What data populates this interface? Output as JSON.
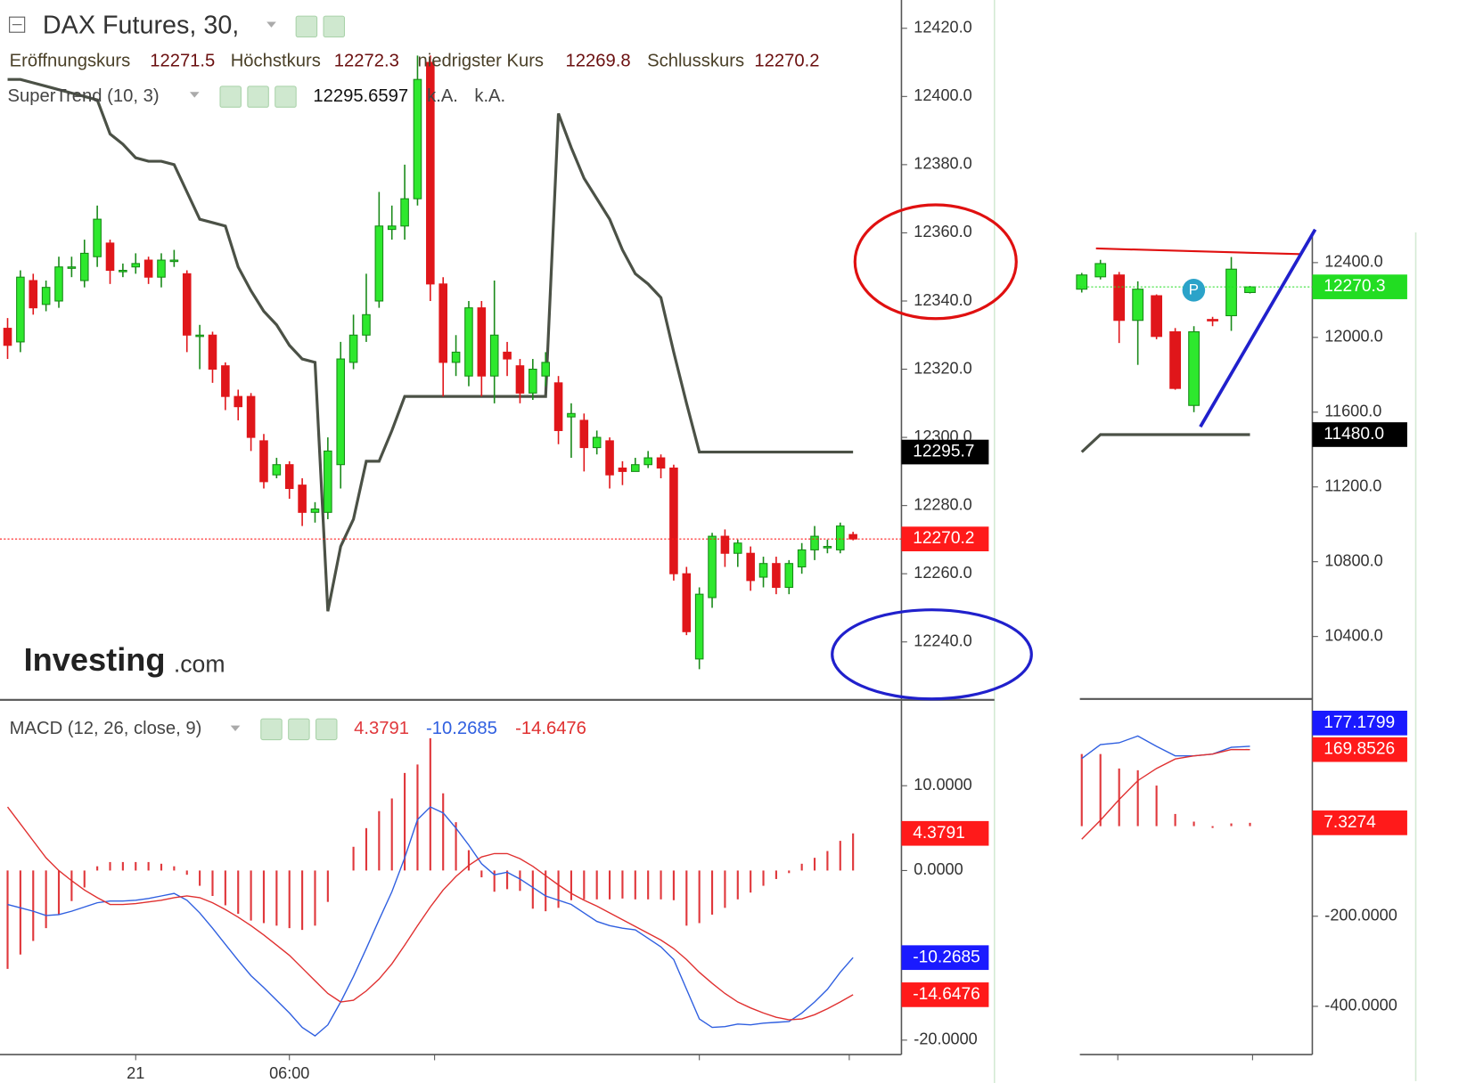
{
  "chart_data": [
    {
      "type": "candlestick",
      "title": "DAX Futures, 30,",
      "ohlc_labels": [
        "Eröffnungskurs",
        "Höchstkurs",
        "niedrigster Kurs",
        "Schlusskurs"
      ],
      "ohlc_values": [
        12271.5,
        12272.3,
        12269.8,
        12270.2
      ],
      "categories": [
        null,
        null,
        null,
        null,
        null,
        null,
        null,
        null,
        null,
        null,
        "21",
        null,
        null,
        null,
        null,
        null,
        null,
        null,
        null,
        null,
        null,
        null,
        "06:00",
        null,
        null,
        null,
        null,
        null,
        null,
        null,
        null,
        null,
        null,
        null,
        null,
        null,
        null,
        null,
        null,
        null,
        null,
        null,
        null,
        null,
        null,
        null,
        null,
        null,
        null,
        null,
        null,
        null,
        null,
        null,
        null,
        null,
        null,
        null,
        null,
        null,
        null,
        null,
        null,
        null,
        null,
        null,
        null
      ],
      "open": [
        12332,
        12328,
        12346,
        12339,
        12340,
        12350,
        12346,
        12353,
        12357,
        12349,
        12350,
        12352,
        12347,
        12352,
        12348,
        12330,
        12330,
        12321,
        12312,
        12312,
        12299,
        12289,
        12292,
        12286,
        12278,
        12278,
        12292,
        12322,
        12330,
        12340,
        12361,
        12362,
        12370,
        12410,
        12345,
        12322,
        12318,
        12338,
        12318,
        12325,
        12321,
        12313,
        12318,
        12316,
        12306,
        12305,
        12297,
        12299,
        12291,
        12290,
        12292,
        12294,
        12291,
        12260,
        12235,
        12253,
        12271,
        12266,
        12266,
        12259,
        12263,
        12256,
        12262,
        12267,
        12268,
        12267,
        12271.5
      ],
      "high": [
        12335,
        12349,
        12348,
        12346,
        12353,
        12353,
        12358,
        12368,
        12358,
        12351,
        12354,
        12353,
        12354,
        12355,
        12349,
        12333,
        12331,
        12322,
        12314,
        12313,
        12301,
        12294,
        12293,
        12288,
        12281,
        12300,
        12328,
        12336,
        12348,
        12372,
        12368,
        12380,
        12412,
        12412,
        12347,
        12330,
        12340,
        12340,
        12346,
        12328,
        12323,
        12323,
        12325,
        12318,
        12310,
        12307,
        12302,
        12300,
        12293,
        12294,
        12296,
        12295,
        12292,
        12262,
        12256,
        12272,
        12273,
        12270,
        12268,
        12265,
        12265,
        12264,
        12269,
        12274,
        12270,
        12275,
        12272.3
      ],
      "low": [
        12323,
        12325,
        12336,
        12337,
        12338,
        12347,
        12344,
        12350,
        12345,
        12347,
        12348,
        12345,
        12344,
        12350,
        12325,
        12320,
        12316,
        12308,
        12305,
        12296,
        12285,
        12288,
        12282,
        12274,
        12275,
        12276,
        12285,
        12320,
        12328,
        12338,
        12358,
        12358,
        12368,
        12340,
        12312,
        12318,
        12315,
        12312,
        12310,
        12318,
        12310,
        12311,
        12315,
        12298,
        12294,
        12290,
        12295,
        12285,
        12286,
        12290,
        12291,
        12288,
        12258,
        12242,
        12232,
        12250,
        12262,
        12262,
        12255,
        12256,
        12254,
        12254,
        12260,
        12264,
        12266,
        12266,
        12269.8
      ],
      "close": [
        12327,
        12347,
        12338,
        12344,
        12350,
        12350,
        12354,
        12364,
        12349,
        12349,
        12351,
        12347,
        12352,
        12352,
        12330,
        12330,
        12320,
        12312,
        12309,
        12300,
        12287,
        12292,
        12285,
        12278,
        12279,
        12296,
        12323,
        12330,
        12336,
        12362,
        12362,
        12370,
        12405,
        12345,
        12322,
        12325,
        12338,
        12318,
        12330,
        12323,
        12313,
        12320,
        12322,
        12302,
        12307,
        12297,
        12300,
        12289,
        12290,
        12292,
        12294,
        12291,
        12260,
        12243,
        12254,
        12271,
        12266,
        12269,
        12258,
        12263,
        12256,
        12263,
        12267,
        12271,
        12268,
        12274,
        12270.2
      ],
      "up_color": "#2ee82e",
      "down_color": "#e0161a",
      "series": [
        {
          "name": "SuperTrend (10, 3)",
          "color": "#4b5146",
          "value": 12295.6597,
          "status_labels": [
            "k.A.",
            "k.A."
          ],
          "values": [
            12405,
            12405,
            12404,
            12403,
            12402,
            12401,
            12400,
            12399,
            12389,
            12386,
            12382,
            12381,
            12381,
            12380,
            12372,
            12364,
            12363,
            12362,
            12350,
            12343,
            12337,
            12333,
            12327,
            12323,
            12322,
            12249,
            12268,
            12276,
            12293,
            12293,
            12302,
            12312,
            12312,
            12312,
            12312,
            12312,
            12312,
            12312,
            12312,
            12312,
            12312,
            12312,
            12312,
            12395,
            12385,
            12376,
            12370,
            12364,
            12355,
            12348,
            12345,
            12341,
            12325,
            12310,
            12295.7,
            12295.7,
            12295.7,
            12295.7,
            12295.7,
            12295.7,
            12295.7,
            12295.7,
            12295.7,
            12295.7,
            12295.7,
            12295.7,
            12295.7
          ]
        }
      ],
      "ylim": [
        12223,
        12428.3
      ],
      "yticks": [
        {
          "value": 12420,
          "label": "12420.0"
        },
        {
          "value": 12400,
          "label": "12400.0"
        },
        {
          "value": 12380,
          "label": "12380.0"
        },
        {
          "value": 12360,
          "label": "12360.0"
        },
        {
          "value": 12340,
          "label": "12340.0"
        },
        {
          "value": 12320,
          "label": "12320.0"
        },
        {
          "value": 12300,
          "label": "12300.0"
        },
        {
          "value": 12280,
          "label": "12280.0"
        },
        {
          "value": 12260,
          "label": "12260.0"
        },
        {
          "value": 12240,
          "label": "12240.0"
        }
      ],
      "price_labels": [
        {
          "value": 12295.7,
          "color": "#000000"
        },
        {
          "value": 12270.2,
          "color": "#ff1a1a",
          "line": true
        }
      ],
      "watermark": [
        "Investing",
        ".com"
      ]
    },
    {
      "type": "macd",
      "title": "MACD (12, 26, close, 9)",
      "legend_values": [
        4.3791,
        -10.2685,
        -14.6476
      ],
      "histogram": {
        "color": "#e0383c",
        "values": [
          -11.6,
          -9.9,
          -8.3,
          -6.8,
          -5.2,
          -3.6,
          -2.0,
          0.5,
          1.0,
          1.0,
          1.0,
          1.0,
          0.8,
          0.5,
          -0.5,
          -1.8,
          -3.0,
          -4.1,
          -5.1,
          -5.9,
          -6.2,
          -6.5,
          -6.8,
          -7.0,
          -6.5,
          -3.7,
          0.0,
          2.8,
          5.0,
          7.0,
          8.5,
          11.5,
          12.5,
          15.6,
          9.1,
          5.7,
          2.4,
          -0.8,
          -2.5,
          -2.2,
          -2.4,
          -4.5,
          -4.8,
          -4.4,
          -3.5,
          -3.4,
          -3.4,
          -3.4,
          -3.3,
          -3.4,
          -3.4,
          -3.4,
          -3.5,
          -6.5,
          -6.2,
          -5.2,
          -4.4,
          -3.4,
          -2.6,
          -1.8,
          -1.0,
          -0.3,
          0.8,
          1.5,
          2.3,
          3.5,
          4.3791
        ]
      },
      "series": [
        {
          "color": "#2f5fe0",
          "values": [
            -4.0,
            -4.4,
            -4.8,
            -5.3,
            -5.2,
            -4.8,
            -4.3,
            -3.8,
            -3.6,
            -3.6,
            -3.5,
            -3.3,
            -3.0,
            -2.7,
            -3.5,
            -5.0,
            -6.8,
            -8.7,
            -10.6,
            -12.4,
            -13.8,
            -15.3,
            -16.8,
            -18.5,
            -19.5,
            -18.2,
            -15.5,
            -12.5,
            -9.2,
            -5.8,
            -2.5,
            1.5,
            6.0,
            7.5,
            6.8,
            5.0,
            3.0,
            0.8,
            -0.5,
            -0.2,
            -1.0,
            -2.0,
            -3.0,
            -3.5,
            -4.0,
            -5.0,
            -6.0,
            -6.5,
            -6.8,
            -7.0,
            -8.0,
            -9.0,
            -10.5,
            -14.0,
            -17.5,
            -18.5,
            -18.4,
            -18.1,
            -18.2,
            -18.0,
            -17.9,
            -17.8,
            -16.8,
            -15.5,
            -14.0,
            -12.0,
            -10.2685
          ]
        },
        {
          "color": "#e03030",
          "values": [
            7.5,
            5.5,
            3.5,
            1.5,
            0.0,
            -1.2,
            -2.3,
            -3.2,
            -4.0,
            -4.0,
            -3.9,
            -3.7,
            -3.5,
            -3.2,
            -3.0,
            -3.2,
            -3.8,
            -4.6,
            -5.5,
            -6.5,
            -7.6,
            -8.8,
            -10.0,
            -11.5,
            -13.0,
            -14.5,
            -15.5,
            -15.3,
            -14.2,
            -12.8,
            -11.0,
            -8.8,
            -6.5,
            -4.3,
            -2.3,
            -0.7,
            0.6,
            1.6,
            2.0,
            2.0,
            1.4,
            0.5,
            -0.6,
            -1.7,
            -2.7,
            -3.5,
            -4.2,
            -5.0,
            -5.8,
            -6.6,
            -7.4,
            -8.2,
            -9.2,
            -10.5,
            -12.0,
            -13.3,
            -14.5,
            -15.5,
            -16.2,
            -16.8,
            -17.3,
            -17.6,
            -17.5,
            -17.0,
            -16.3,
            -15.5,
            -14.6476
          ]
        }
      ],
      "ylim": [
        -21.7,
        19.9
      ],
      "yticks": [
        {
          "value": 10,
          "label": "10.0000"
        },
        {
          "value": 0,
          "label": "0.0000"
        },
        {
          "value": -20,
          "label": "-20.0000"
        }
      ],
      "price_labels": [
        {
          "value": 4.3791,
          "color": "#ff1a1a"
        },
        {
          "value": -10.2685,
          "color": "#1a1aff"
        },
        {
          "value": -14.6476,
          "color": "#ff1a1a"
        }
      ]
    },
    {
      "type": "candlestick",
      "open": [
        12258,
        12324,
        12334,
        12091,
        12223,
        12030,
        11636,
        12096,
        12116,
        12240
      ],
      "high": [
        12345,
        12415,
        12350,
        12300,
        12230,
        12050,
        12060,
        12110,
        12430,
        12275
      ],
      "low": [
        12240,
        12310,
        11970,
        11853,
        11990,
        11720,
        11600,
        12060,
        12035,
        12235
      ],
      "close": [
        12334,
        12395,
        12091,
        12258,
        12005,
        11727,
        12030,
        12091,
        12365,
        12270.3
      ],
      "up_color": "#2ee82e",
      "down_color": "#e0161a",
      "series": [
        {
          "color": "#4b5146",
          "values": [
            11387,
            11480,
            11480,
            11480,
            11480,
            11480,
            11480,
            11480,
            11480,
            11480
          ]
        }
      ],
      "ylim": [
        10066,
        12562
      ],
      "yticks": [
        {
          "value": 12400,
          "label": "12400.0"
        },
        {
          "value": 12000,
          "label": "12000.0"
        },
        {
          "value": 11600,
          "label": "11600.0"
        },
        {
          "value": 11200,
          "label": "11200.0"
        },
        {
          "value": 10800,
          "label": "10800.0"
        },
        {
          "value": 10400,
          "label": "10400.0"
        }
      ],
      "price_labels": [
        {
          "value": 12270.3,
          "color": "#22dd22",
          "line": true
        },
        {
          "value": 11480,
          "label": "11480.0",
          "color": "#000000"
        }
      ],
      "marker_label": "P"
    },
    {
      "type": "macd",
      "histogram": {
        "color": "#e0383c",
        "values": [
          160,
          160,
          128,
          124,
          90,
          27,
          10,
          -4,
          6,
          7.3274
        ]
      },
      "series": [
        {
          "color": "#2f5fe0",
          "values": [
            150,
            181,
            185,
            200,
            177,
            156,
            156,
            160,
            175,
            177.1799
          ]
        },
        {
          "color": "#e03030",
          "values": [
            -29,
            13,
            59,
            101,
            128,
            149,
            156,
            160,
            170,
            169.8526
          ]
        }
      ],
      "ylim": [
        -507,
        276
      ],
      "yticks": [
        {
          "value": -200,
          "label": "-200.0000"
        },
        {
          "value": -400,
          "label": "-400.0000"
        }
      ],
      "price_labels": [
        {
          "value": 177.1799,
          "color": "#1a1aff"
        },
        {
          "value": 169.8526,
          "color": "#ff1a1a"
        },
        {
          "value": 7.3274,
          "color": "#ff1a1a"
        }
      ]
    }
  ]
}
